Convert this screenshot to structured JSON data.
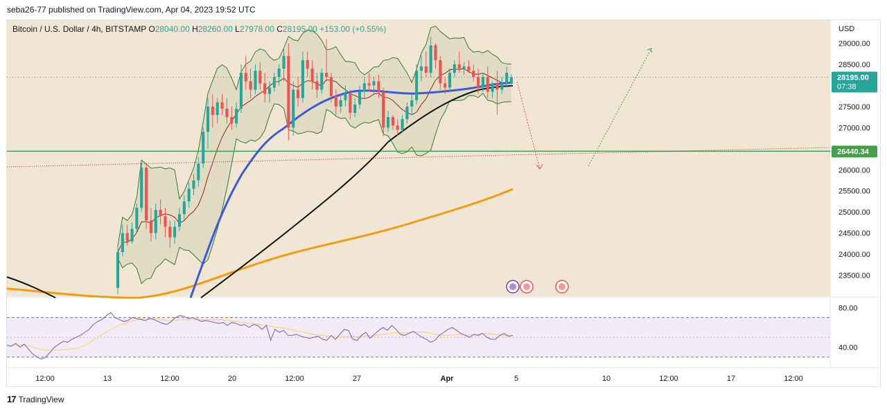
{
  "publisher_line": "seba26-77 published on TradingView.com, Apr 04, 2023 19:52 UTC",
  "footer_brand": "TradingView",
  "footer_mark": "17",
  "colors": {
    "bg_panel": "#f1e6d4",
    "up": "#26a69a",
    "down": "#ef5350",
    "ma_blue": "#3a5bd9",
    "ma_black": "#111111",
    "ma_orange": "#f39c12",
    "bb": "#2e7d32",
    "support": "#43a047",
    "rsi": "#7e57c2",
    "rsi_ma": "#f5d76e"
  },
  "chart_data": {
    "type": "candlestick",
    "symbol": "Bitcoin / U.S. Dollar",
    "interval": "4h",
    "exchange": "BITSTAMP",
    "ohlc": {
      "open_label": "O",
      "open": "28040.00",
      "high_label": "H",
      "high": "28260.00",
      "low_label": "L",
      "low": "27978.00",
      "close_label": "C",
      "close": "28195.00",
      "change": "+153.00 (+0.55%)"
    },
    "currency": "USD",
    "price_ticks": [
      "29000.00",
      "28500.00",
      "27500.00",
      "27000.00",
      "26000.00",
      "25500.00",
      "25000.00",
      "24500.00",
      "24000.00",
      "23500.00"
    ],
    "yrange": [
      23000,
      29550
    ],
    "current_price": {
      "value": "28195.00",
      "countdown": "07:38",
      "y": 28195
    },
    "support_level": {
      "value": "26440.34",
      "y": 26440.34
    },
    "time_ticks": [
      "12:00",
      "13",
      "12:00",
      "20",
      "12:00",
      "27",
      "Apr",
      "5",
      "10",
      "12:00",
      "17",
      "12:00"
    ],
    "rsi": {
      "ticks": [
        "80.00",
        "40.00"
      ],
      "upper": 70,
      "lower": 30,
      "mid": 50,
      "yrange": [
        20,
        90
      ]
    },
    "candles": [
      {
        "o": 23200,
        "h": 24200,
        "l": 23050,
        "c": 24050
      },
      {
        "o": 24050,
        "h": 24700,
        "l": 23950,
        "c": 24500
      },
      {
        "o": 24500,
        "h": 24700,
        "l": 24200,
        "c": 24300
      },
      {
        "o": 24300,
        "h": 24750,
        "l": 24250,
        "c": 24600
      },
      {
        "o": 24600,
        "h": 25200,
        "l": 24500,
        "c": 25100
      },
      {
        "o": 25100,
        "h": 26200,
        "l": 25000,
        "c": 26050
      },
      {
        "o": 26050,
        "h": 26150,
        "l": 24600,
        "c": 24800
      },
      {
        "o": 24800,
        "h": 25100,
        "l": 24300,
        "c": 24500
      },
      {
        "o": 24500,
        "h": 25200,
        "l": 24350,
        "c": 25050
      },
      {
        "o": 25050,
        "h": 25300,
        "l": 24700,
        "c": 24900
      },
      {
        "o": 24900,
        "h": 25100,
        "l": 24400,
        "c": 24650
      },
      {
        "o": 24650,
        "h": 24800,
        "l": 24150,
        "c": 24400
      },
      {
        "o": 24400,
        "h": 24800,
        "l": 24250,
        "c": 24650
      },
      {
        "o": 24650,
        "h": 25100,
        "l": 24550,
        "c": 24950
      },
      {
        "o": 24950,
        "h": 25400,
        "l": 24800,
        "c": 25250
      },
      {
        "o": 25250,
        "h": 25700,
        "l": 25100,
        "c": 25550
      },
      {
        "o": 25550,
        "h": 25900,
        "l": 25400,
        "c": 25750
      },
      {
        "o": 25750,
        "h": 26300,
        "l": 25600,
        "c": 26150
      },
      {
        "o": 26150,
        "h": 27000,
        "l": 26050,
        "c": 26900
      },
      {
        "o": 26900,
        "h": 27700,
        "l": 26500,
        "c": 27500
      },
      {
        "o": 27500,
        "h": 27800,
        "l": 27000,
        "c": 27300
      },
      {
        "o": 27300,
        "h": 27700,
        "l": 27100,
        "c": 27600
      },
      {
        "o": 27600,
        "h": 27800,
        "l": 27300,
        "c": 27450
      },
      {
        "o": 27450,
        "h": 27700,
        "l": 27100,
        "c": 27250
      },
      {
        "o": 27250,
        "h": 27500,
        "l": 26950,
        "c": 27100
      },
      {
        "o": 27100,
        "h": 27600,
        "l": 27000,
        "c": 27450
      },
      {
        "o": 27450,
        "h": 28500,
        "l": 27350,
        "c": 28300
      },
      {
        "o": 28300,
        "h": 28700,
        "l": 27900,
        "c": 28100
      },
      {
        "o": 28100,
        "h": 28400,
        "l": 27700,
        "c": 27900
      },
      {
        "o": 27900,
        "h": 28500,
        "l": 27800,
        "c": 28350
      },
      {
        "o": 28350,
        "h": 28550,
        "l": 27900,
        "c": 28050
      },
      {
        "o": 28050,
        "h": 28300,
        "l": 27600,
        "c": 27800
      },
      {
        "o": 27800,
        "h": 28100,
        "l": 27600,
        "c": 27950
      },
      {
        "o": 27950,
        "h": 28300,
        "l": 27850,
        "c": 28200
      },
      {
        "o": 28200,
        "h": 28500,
        "l": 28000,
        "c": 28400
      },
      {
        "o": 28400,
        "h": 28900,
        "l": 28100,
        "c": 28700
      },
      {
        "o": 28700,
        "h": 29000,
        "l": 26700,
        "c": 27000
      },
      {
        "o": 27000,
        "h": 28100,
        "l": 26800,
        "c": 27900
      },
      {
        "o": 27900,
        "h": 28200,
        "l": 27500,
        "c": 27700
      },
      {
        "o": 27700,
        "h": 28800,
        "l": 27600,
        "c": 28600
      },
      {
        "o": 28600,
        "h": 28800,
        "l": 28200,
        "c": 28400
      },
      {
        "o": 28400,
        "h": 28600,
        "l": 27900,
        "c": 28100
      },
      {
        "o": 28100,
        "h": 28300,
        "l": 27700,
        "c": 27900
      },
      {
        "o": 27900,
        "h": 28400,
        "l": 27800,
        "c": 28300
      },
      {
        "o": 28300,
        "h": 29100,
        "l": 28100,
        "c": 28200
      },
      {
        "o": 28200,
        "h": 28300,
        "l": 27600,
        "c": 27750
      },
      {
        "o": 27750,
        "h": 27900,
        "l": 27300,
        "c": 27500
      },
      {
        "o": 27500,
        "h": 27800,
        "l": 27350,
        "c": 27650
      },
      {
        "o": 27650,
        "h": 28000,
        "l": 27500,
        "c": 27800
      },
      {
        "o": 27800,
        "h": 27900,
        "l": 27200,
        "c": 27350
      },
      {
        "o": 27350,
        "h": 27700,
        "l": 27250,
        "c": 27550
      },
      {
        "o": 27550,
        "h": 28000,
        "l": 27450,
        "c": 27850
      },
      {
        "o": 27850,
        "h": 28200,
        "l": 27700,
        "c": 28050
      },
      {
        "o": 28050,
        "h": 28300,
        "l": 27850,
        "c": 28000
      },
      {
        "o": 28000,
        "h": 28200,
        "l": 27800,
        "c": 28100
      },
      {
        "o": 28100,
        "h": 28250,
        "l": 27700,
        "c": 27850
      },
      {
        "o": 27850,
        "h": 27950,
        "l": 26800,
        "c": 27000
      },
      {
        "o": 27000,
        "h": 27400,
        "l": 26900,
        "c": 27250
      },
      {
        "o": 27250,
        "h": 27300,
        "l": 26950,
        "c": 27050
      },
      {
        "o": 27050,
        "h": 27200,
        "l": 26800,
        "c": 26950
      },
      {
        "o": 26950,
        "h": 27300,
        "l": 26900,
        "c": 27200
      },
      {
        "o": 27200,
        "h": 27600,
        "l": 27100,
        "c": 27500
      },
      {
        "o": 27500,
        "h": 27800,
        "l": 27300,
        "c": 27650
      },
      {
        "o": 27650,
        "h": 28500,
        "l": 27550,
        "c": 28350
      },
      {
        "o": 28350,
        "h": 28700,
        "l": 28100,
        "c": 28450
      },
      {
        "o": 28450,
        "h": 28800,
        "l": 28200,
        "c": 28300
      },
      {
        "o": 28300,
        "h": 29150,
        "l": 28200,
        "c": 28950
      },
      {
        "o": 28950,
        "h": 29000,
        "l": 28400,
        "c": 28600
      },
      {
        "o": 28600,
        "h": 28700,
        "l": 27900,
        "c": 28050
      },
      {
        "o": 28050,
        "h": 28200,
        "l": 27800,
        "c": 27950
      },
      {
        "o": 27950,
        "h": 28400,
        "l": 27850,
        "c": 28300
      },
      {
        "o": 28300,
        "h": 28600,
        "l": 28200,
        "c": 28500
      },
      {
        "o": 28500,
        "h": 28800,
        "l": 28300,
        "c": 28400
      },
      {
        "o": 28400,
        "h": 28550,
        "l": 28250,
        "c": 28450
      },
      {
        "o": 28450,
        "h": 28600,
        "l": 28300,
        "c": 28350
      },
      {
        "o": 28350,
        "h": 28500,
        "l": 28100,
        "c": 28200
      },
      {
        "o": 28200,
        "h": 28400,
        "l": 27800,
        "c": 27950
      },
      {
        "o": 27950,
        "h": 28300,
        "l": 27850,
        "c": 28200
      },
      {
        "o": 28200,
        "h": 28450,
        "l": 27700,
        "c": 27850
      },
      {
        "o": 27850,
        "h": 28100,
        "l": 27700,
        "c": 28050
      },
      {
        "o": 28050,
        "h": 28350,
        "l": 27300,
        "c": 27900
      },
      {
        "o": 27900,
        "h": 28200,
        "l": 27800,
        "c": 28050
      },
      {
        "o": 28050,
        "h": 28450,
        "l": 27950,
        "c": 28300
      },
      {
        "o": 28040,
        "h": 28260,
        "l": 27978,
        "c": 28195
      }
    ],
    "rsi_values": [
      42,
      41,
      44,
      40,
      43,
      38,
      33,
      30,
      28,
      30,
      35,
      40,
      43,
      46,
      45,
      48,
      50,
      52,
      55,
      58,
      63,
      66,
      68,
      72,
      75,
      70,
      68,
      66,
      67,
      70,
      69,
      68,
      67,
      69,
      68,
      66,
      64,
      63,
      66,
      70,
      72,
      71,
      69,
      70,
      68,
      66,
      67,
      66,
      65,
      64,
      65,
      62,
      65,
      64,
      62,
      63,
      60,
      63,
      62,
      58,
      62,
      47,
      58,
      55,
      57,
      52,
      52,
      53,
      51,
      50,
      49,
      50,
      51,
      48,
      47,
      52,
      48,
      53,
      58,
      57,
      48,
      47,
      52,
      55,
      49,
      53,
      57,
      60,
      57,
      62,
      58,
      53,
      52,
      54,
      56,
      53,
      50,
      48,
      45,
      47,
      52,
      55,
      58,
      60,
      57,
      54,
      52,
      50,
      53,
      52,
      54,
      50,
      48,
      48,
      52,
      54,
      51,
      52
    ]
  }
}
